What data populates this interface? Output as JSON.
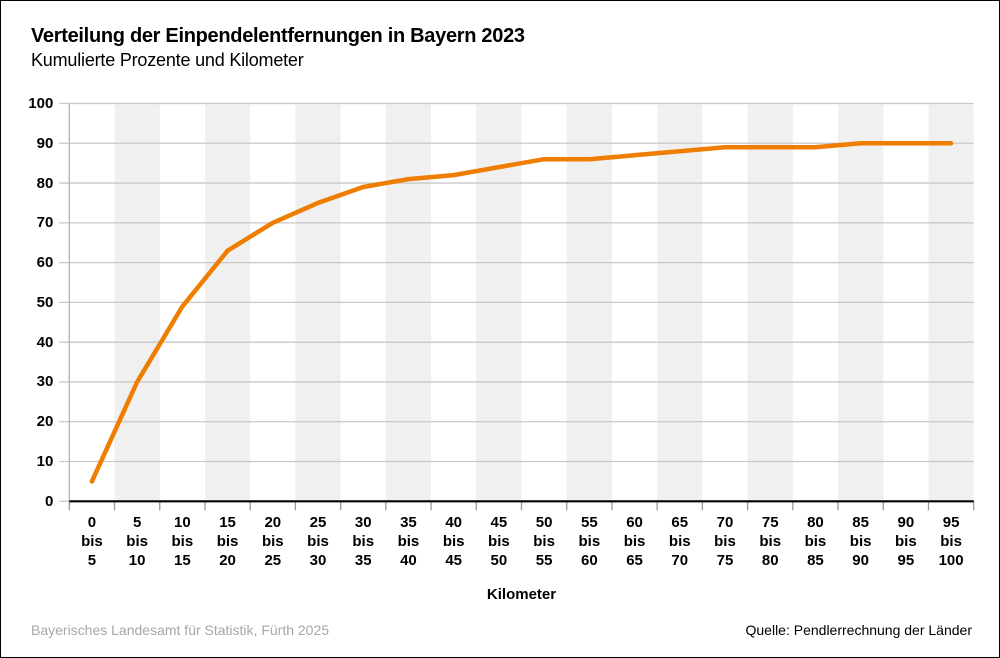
{
  "header": {
    "title": "Verteilung der Einpendelentfernungen in Bayern 2023",
    "subtitle": "Kumulierte Prozente und Kilometer"
  },
  "chart_data": {
    "type": "line",
    "title": "Verteilung der Einpendelentfernungen in Bayern 2023",
    "subtitle": "Kumulierte Prozente und Kilometer",
    "categories": [
      "0 bis 5",
      "5 bis 10",
      "10 bis 15",
      "15 bis 20",
      "20 bis 25",
      "25 bis 30",
      "30 bis 35",
      "35 bis 40",
      "40 bis 45",
      "45 bis 50",
      "50 bis 55",
      "55 bis 60",
      "60 bis 65",
      "65 bis 70",
      "70 bis 75",
      "75 bis 80",
      "80 bis 85",
      "85 bis 90",
      "90 bis 95",
      "95 bis 100"
    ],
    "values": [
      5,
      30,
      49,
      63,
      70,
      75,
      79,
      81,
      82,
      84,
      86,
      86,
      87,
      88,
      89,
      89,
      89,
      90,
      90,
      90
    ],
    "series_name": "Kumulierte Prozente",
    "xlabel": "Kilometer",
    "ylabel": "",
    "ylim": [
      0,
      100
    ],
    "y_ticks": [
      0,
      10,
      20,
      30,
      40,
      50,
      60,
      70,
      80,
      90,
      100
    ],
    "grid": true,
    "legend_position": "none",
    "colors": {
      "line": "#ee7d00",
      "stripe": "#f0f0f0",
      "gridline": "#c8c8c8",
      "axis_line": "#b3b3b3",
      "x_axis": "#000000",
      "tick": "#999999"
    }
  },
  "footer": {
    "left": "Bayerisches Landesamt für Statistik, Fürth 2025",
    "right": "Quelle: Pendlerrechnung der Länder"
  }
}
